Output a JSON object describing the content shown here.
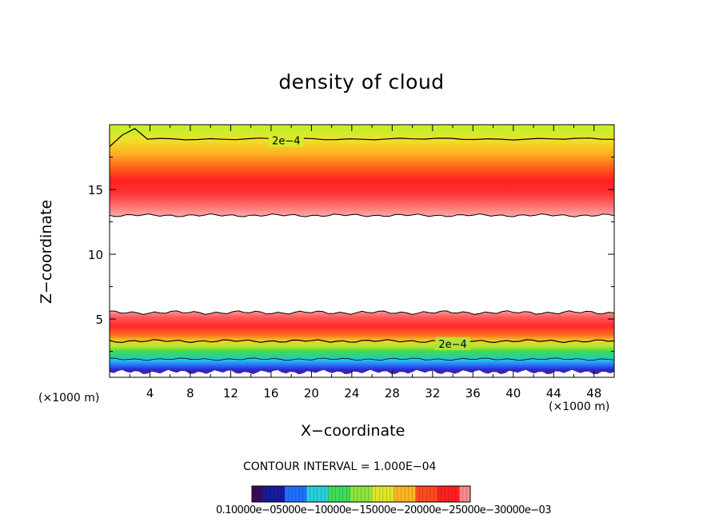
{
  "chart_data": {
    "type": "contour",
    "title": "density of cloud",
    "xlabel": "X−coordinate",
    "ylabel": "Z−coordinate",
    "x_unit_left": "(×1000 m)",
    "x_unit_right": "(×1000 m)",
    "xlim": [
      0,
      50
    ],
    "ylim": [
      0.5,
      20
    ],
    "x_ticks": [
      4,
      8,
      12,
      16,
      20,
      24,
      28,
      32,
      36,
      40,
      44,
      48
    ],
    "y_ticks": [
      5,
      10,
      15
    ],
    "contour_interval_text": "CONTOUR INTERVAL = 1.000E−04",
    "contour_labels": [
      {
        "text": "2e−4",
        "x": 17.5,
        "z": 18.8
      },
      {
        "text": "2e−4",
        "x": 34.0,
        "z": 3.1
      }
    ],
    "upper_layer": {
      "z_bottom": 13.0,
      "z_peak": 15.0,
      "z_top": 19.5,
      "contour_2e4_z": 18.9
    },
    "lower_layer": {
      "z_bottom": 0.9,
      "z_peak": 4.4,
      "z_top": 5.5,
      "contour_2e4_z": 3.3
    },
    "colorbar": {
      "labels_text": "0.10000e−05000e−10000e−15000e−20000e−25000e−30000e−03",
      "colors": [
        "#3a0a5a",
        "#1a1aa0",
        "#1f6fff",
        "#27d0e0",
        "#3ddc5a",
        "#8ee63a",
        "#dfe62a",
        "#ffb520",
        "#ff4a1e",
        "#ff2020",
        "#ff8a8a"
      ]
    }
  }
}
